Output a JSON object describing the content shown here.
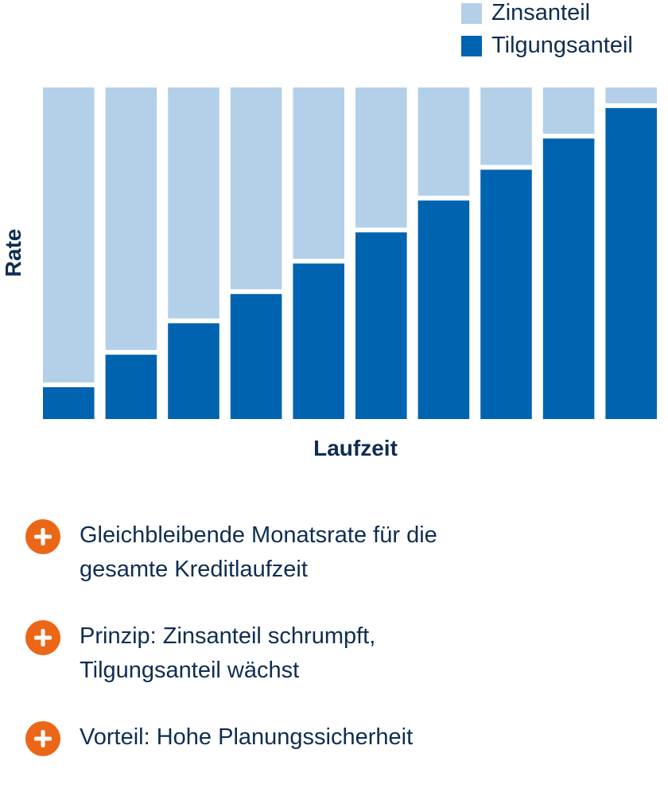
{
  "chart_data": {
    "type": "bar",
    "stacked": true,
    "categories": [
      "",
      "",
      "",
      "",
      "",
      "",
      "",
      "",
      "",
      ""
    ],
    "series": [
      {
        "name": "Tilgungsanteil",
        "color": "#0063b0",
        "values": [
          9.6,
          19.4,
          28.9,
          37.7,
          46.9,
          56.3,
          65.9,
          75.2,
          84.6,
          93.8
        ]
      },
      {
        "name": "Zinsanteil",
        "color": "#b3d0e8",
        "values": [
          90.4,
          80.6,
          71.1,
          62.3,
          53.1,
          43.7,
          34.1,
          24.8,
          15.4,
          6.2
        ]
      }
    ],
    "xlabel": "Laufzeit",
    "ylabel": "Rate",
    "ylim": [
      0,
      100
    ],
    "legend_position": "top-right",
    "grid": false
  },
  "legend": {
    "items": [
      {
        "label": "Zinsanteil",
        "color": "#b3d0e8"
      },
      {
        "label": "Tilgungsanteil",
        "color": "#0063b0"
      }
    ]
  },
  "benefits": [
    {
      "icon": "plus-icon",
      "lines": [
        "Gleichbleibende Monatsrate für die",
        "gesamte Kreditlaufzeit"
      ]
    },
    {
      "icon": "plus-icon",
      "lines": [
        "Prinzip: Zinsanteil schrumpft,",
        "Tilgungsanteil wächst"
      ]
    },
    {
      "icon": "plus-icon",
      "lines": [
        "Vorteil: Hohe Planungssicherheit"
      ]
    }
  ],
  "colors": {
    "accent": "#ec6617",
    "text": "#0f2d52",
    "dark_blue": "#0063b0",
    "light_blue": "#b3d0e8"
  }
}
